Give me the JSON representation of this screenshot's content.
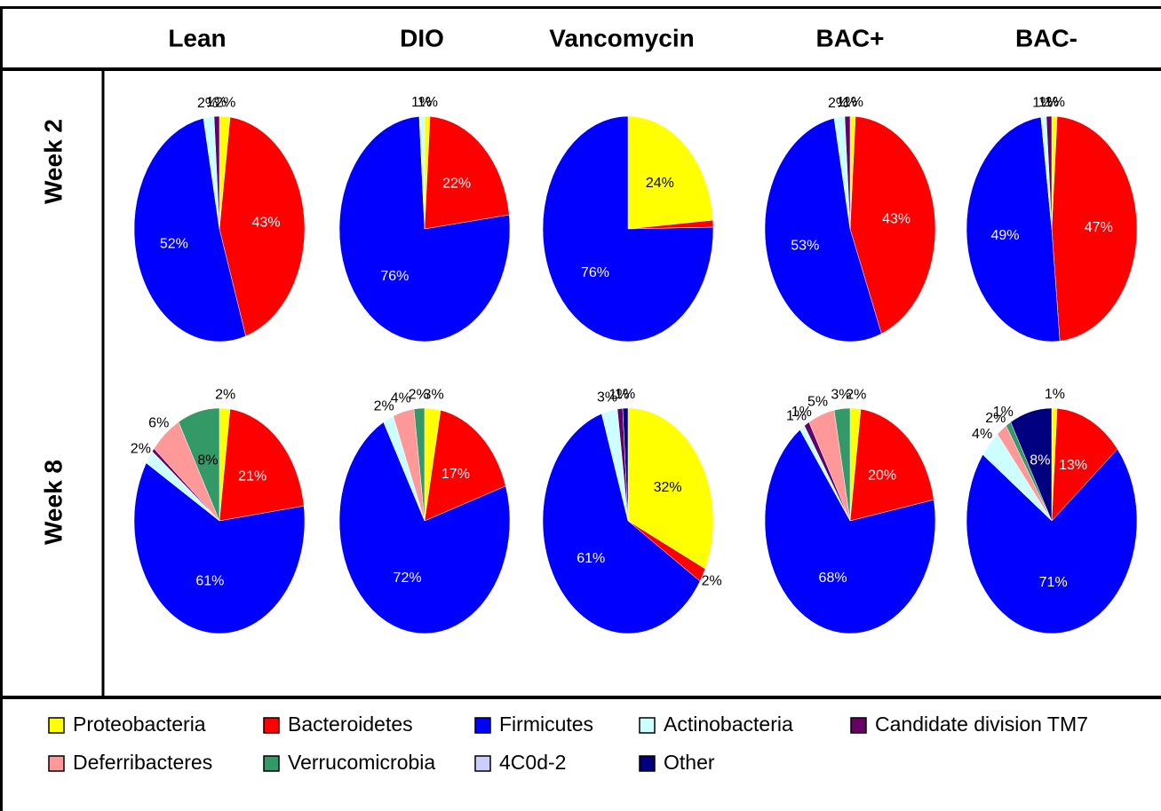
{
  "columns": [
    "Lean",
    "DIO",
    "Vancomycin",
    "BAC+",
    "BAC-"
  ],
  "rows": [
    "Week 2",
    "Week 8"
  ],
  "legend": {
    "names": [
      "Proteobacteria",
      "Bacteroidetes",
      "Firmicutes",
      "Actinobacteria",
      "Candidate division TM7",
      "Deferribacteres",
      "Verrucomicrobia",
      "4C0d-2",
      "Other"
    ],
    "colors": [
      "#ffff00",
      "#ff0000",
      "#0000ff",
      "#ccffff",
      "#660066",
      "#ff9999",
      "#339966",
      "#ccccff",
      "#000080"
    ]
  },
  "chart_data": [
    {
      "type": "pie",
      "values": [
        2,
        43,
        52,
        2,
        1,
        0,
        0,
        0,
        0
      ],
      "value_labels": [
        "2%",
        "43%",
        "52%",
        "2%",
        "1%",
        null,
        null,
        null,
        null
      ]
    },
    {
      "type": "pie",
      "values": [
        1,
        22,
        76,
        1,
        0,
        0,
        0,
        0,
        0
      ],
      "value_labels": [
        "1%",
        "22%",
        "76%",
        "1%",
        null,
        null,
        null,
        null,
        null
      ]
    },
    {
      "type": "pie",
      "values": [
        24,
        1,
        76,
        0,
        0,
        0,
        0,
        0,
        0
      ],
      "value_labels": [
        "24%",
        null,
        "76%",
        null,
        null,
        null,
        null,
        null,
        null
      ]
    },
    {
      "type": "pie",
      "values": [
        1,
        43,
        53,
        2,
        1,
        0,
        0,
        0,
        0
      ],
      "value_labels": [
        "1%",
        "43%",
        "53%",
        "2%",
        "1%",
        null,
        null,
        null,
        null
      ]
    },
    {
      "type": "pie",
      "values": [
        1,
        47,
        49,
        1,
        1,
        0,
        0,
        0,
        0
      ],
      "value_labels": [
        "1%",
        "47%",
        "49%",
        "1%",
        "1%",
        null,
        null,
        null,
        null
      ]
    },
    {
      "type": "pie",
      "values": [
        2,
        21,
        61,
        2,
        0.5,
        6,
        8,
        0,
        0
      ],
      "value_labels": [
        "2%",
        "21%",
        "61%",
        "2%",
        null,
        "6%",
        "8%",
        null,
        null
      ]
    },
    {
      "type": "pie",
      "values": [
        3,
        17,
        72,
        2,
        0,
        4,
        2,
        0,
        0
      ],
      "value_labels": [
        "3%",
        "17%",
        "72%",
        "2%",
        null,
        "4%",
        "2%",
        null,
        null
      ]
    },
    {
      "type": "pie",
      "values": [
        32,
        2,
        61,
        3,
        1,
        0,
        0,
        0,
        1
      ],
      "value_labels": [
        "32%",
        "2%",
        "61%",
        "3%",
        "1%",
        null,
        null,
        null,
        "1%"
      ]
    },
    {
      "type": "pie",
      "values": [
        2,
        20,
        68,
        1,
        1,
        5,
        3,
        0,
        0
      ],
      "value_labels": [
        "2%",
        "20%",
        "68%",
        "1%",
        "1%",
        "5%",
        "3%",
        null,
        null
      ]
    },
    {
      "type": "pie",
      "values": [
        1,
        13,
        71,
        4,
        0,
        2,
        1,
        0,
        8
      ],
      "value_labels": [
        "1%",
        "13%",
        "71%",
        "4%",
        null,
        "2%",
        "1%",
        null,
        "8%"
      ]
    }
  ]
}
